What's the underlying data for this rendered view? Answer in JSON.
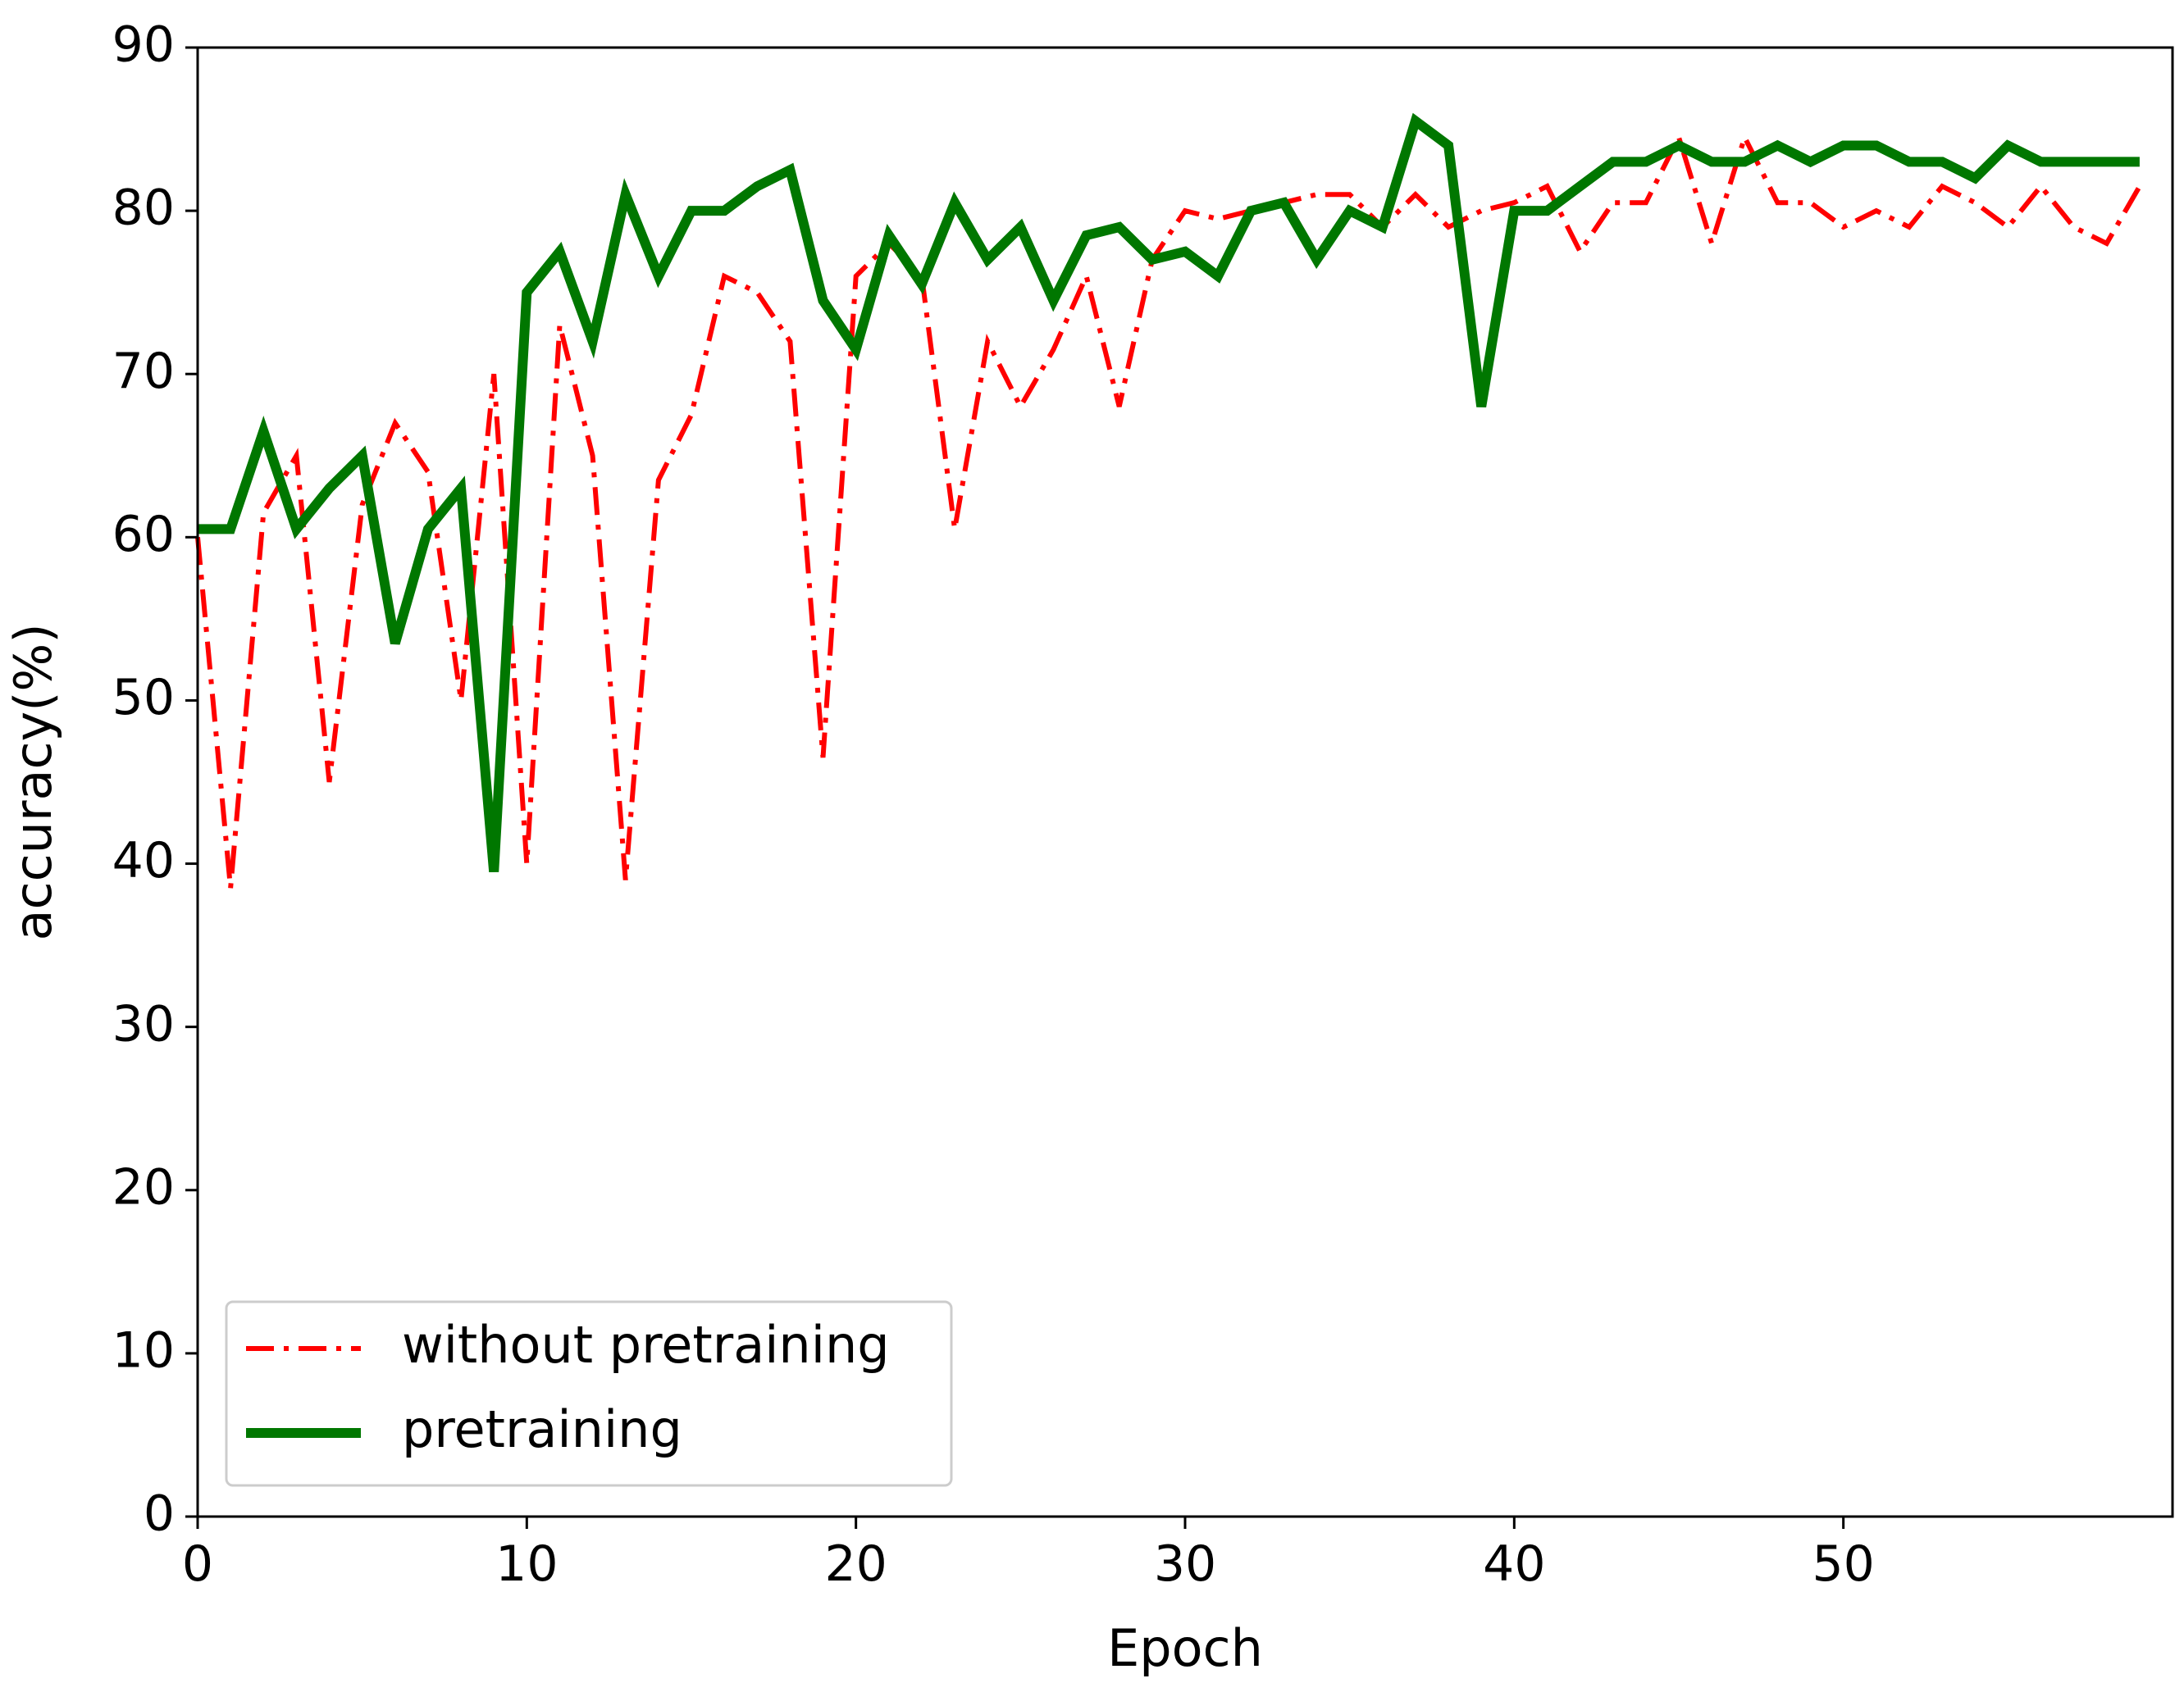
{
  "chart_data": {
    "type": "line",
    "title": "",
    "xlabel": "Epoch",
    "ylabel": "accuracy(%)",
    "xlim": [
      0,
      60
    ],
    "ylim": [
      0,
      90
    ],
    "xticks": [
      0,
      10,
      20,
      30,
      40,
      50
    ],
    "yticks": [
      0,
      10,
      20,
      30,
      40,
      50,
      60,
      70,
      80,
      90
    ],
    "grid": false,
    "legend": {
      "location": "lower-left"
    },
    "x": [
      0,
      1,
      2,
      3,
      4,
      5,
      6,
      7,
      8,
      9,
      10,
      11,
      12,
      13,
      14,
      15,
      16,
      17,
      18,
      19,
      20,
      21,
      22,
      23,
      24,
      25,
      26,
      27,
      28,
      29,
      30,
      31,
      32,
      33,
      34,
      35,
      36,
      37,
      38,
      39,
      40,
      41,
      42,
      43,
      44,
      45,
      46,
      47,
      48,
      49,
      50,
      51,
      52,
      53,
      54,
      55,
      56,
      57,
      58,
      59
    ],
    "series": [
      {
        "name": "without pretraining",
        "color": "#ff0000",
        "linestyle": "dashdot",
        "values": [
          60,
          38.5,
          61.5,
          65,
          45,
          62,
          67,
          64,
          50,
          70,
          40,
          73,
          65,
          39,
          63.5,
          67.5,
          76,
          75,
          72,
          46.5,
          76,
          78,
          76,
          60.5,
          72,
          68,
          71.5,
          76,
          68,
          77,
          80,
          79.5,
          80,
          80.5,
          81,
          81,
          79,
          81,
          79,
          80,
          80.5,
          81.5,
          77.5,
          80.5,
          80.5,
          84.5,
          78,
          84.5,
          80.5,
          80.5,
          79,
          80,
          79,
          81.5,
          80.5,
          79,
          81.5,
          79,
          78,
          81.5
        ]
      },
      {
        "name": "pretraining",
        "color": "#007700",
        "linestyle": "solid",
        "values": [
          60.5,
          60.5,
          66.5,
          60.5,
          63,
          65,
          53.5,
          60.5,
          63,
          39.5,
          75,
          77.5,
          72,
          81,
          76,
          80,
          80,
          81.5,
          82.5,
          74.5,
          71.5,
          78.5,
          75.5,
          80.5,
          77,
          79,
          74.5,
          78.5,
          79,
          77,
          77.5,
          76,
          80,
          80.5,
          77,
          80,
          79,
          85.5,
          84,
          68,
          80,
          80,
          81.5,
          83,
          83,
          84,
          83,
          83,
          84,
          83,
          84,
          84,
          83,
          83,
          82,
          84,
          83,
          83,
          83,
          83
        ]
      }
    ]
  }
}
